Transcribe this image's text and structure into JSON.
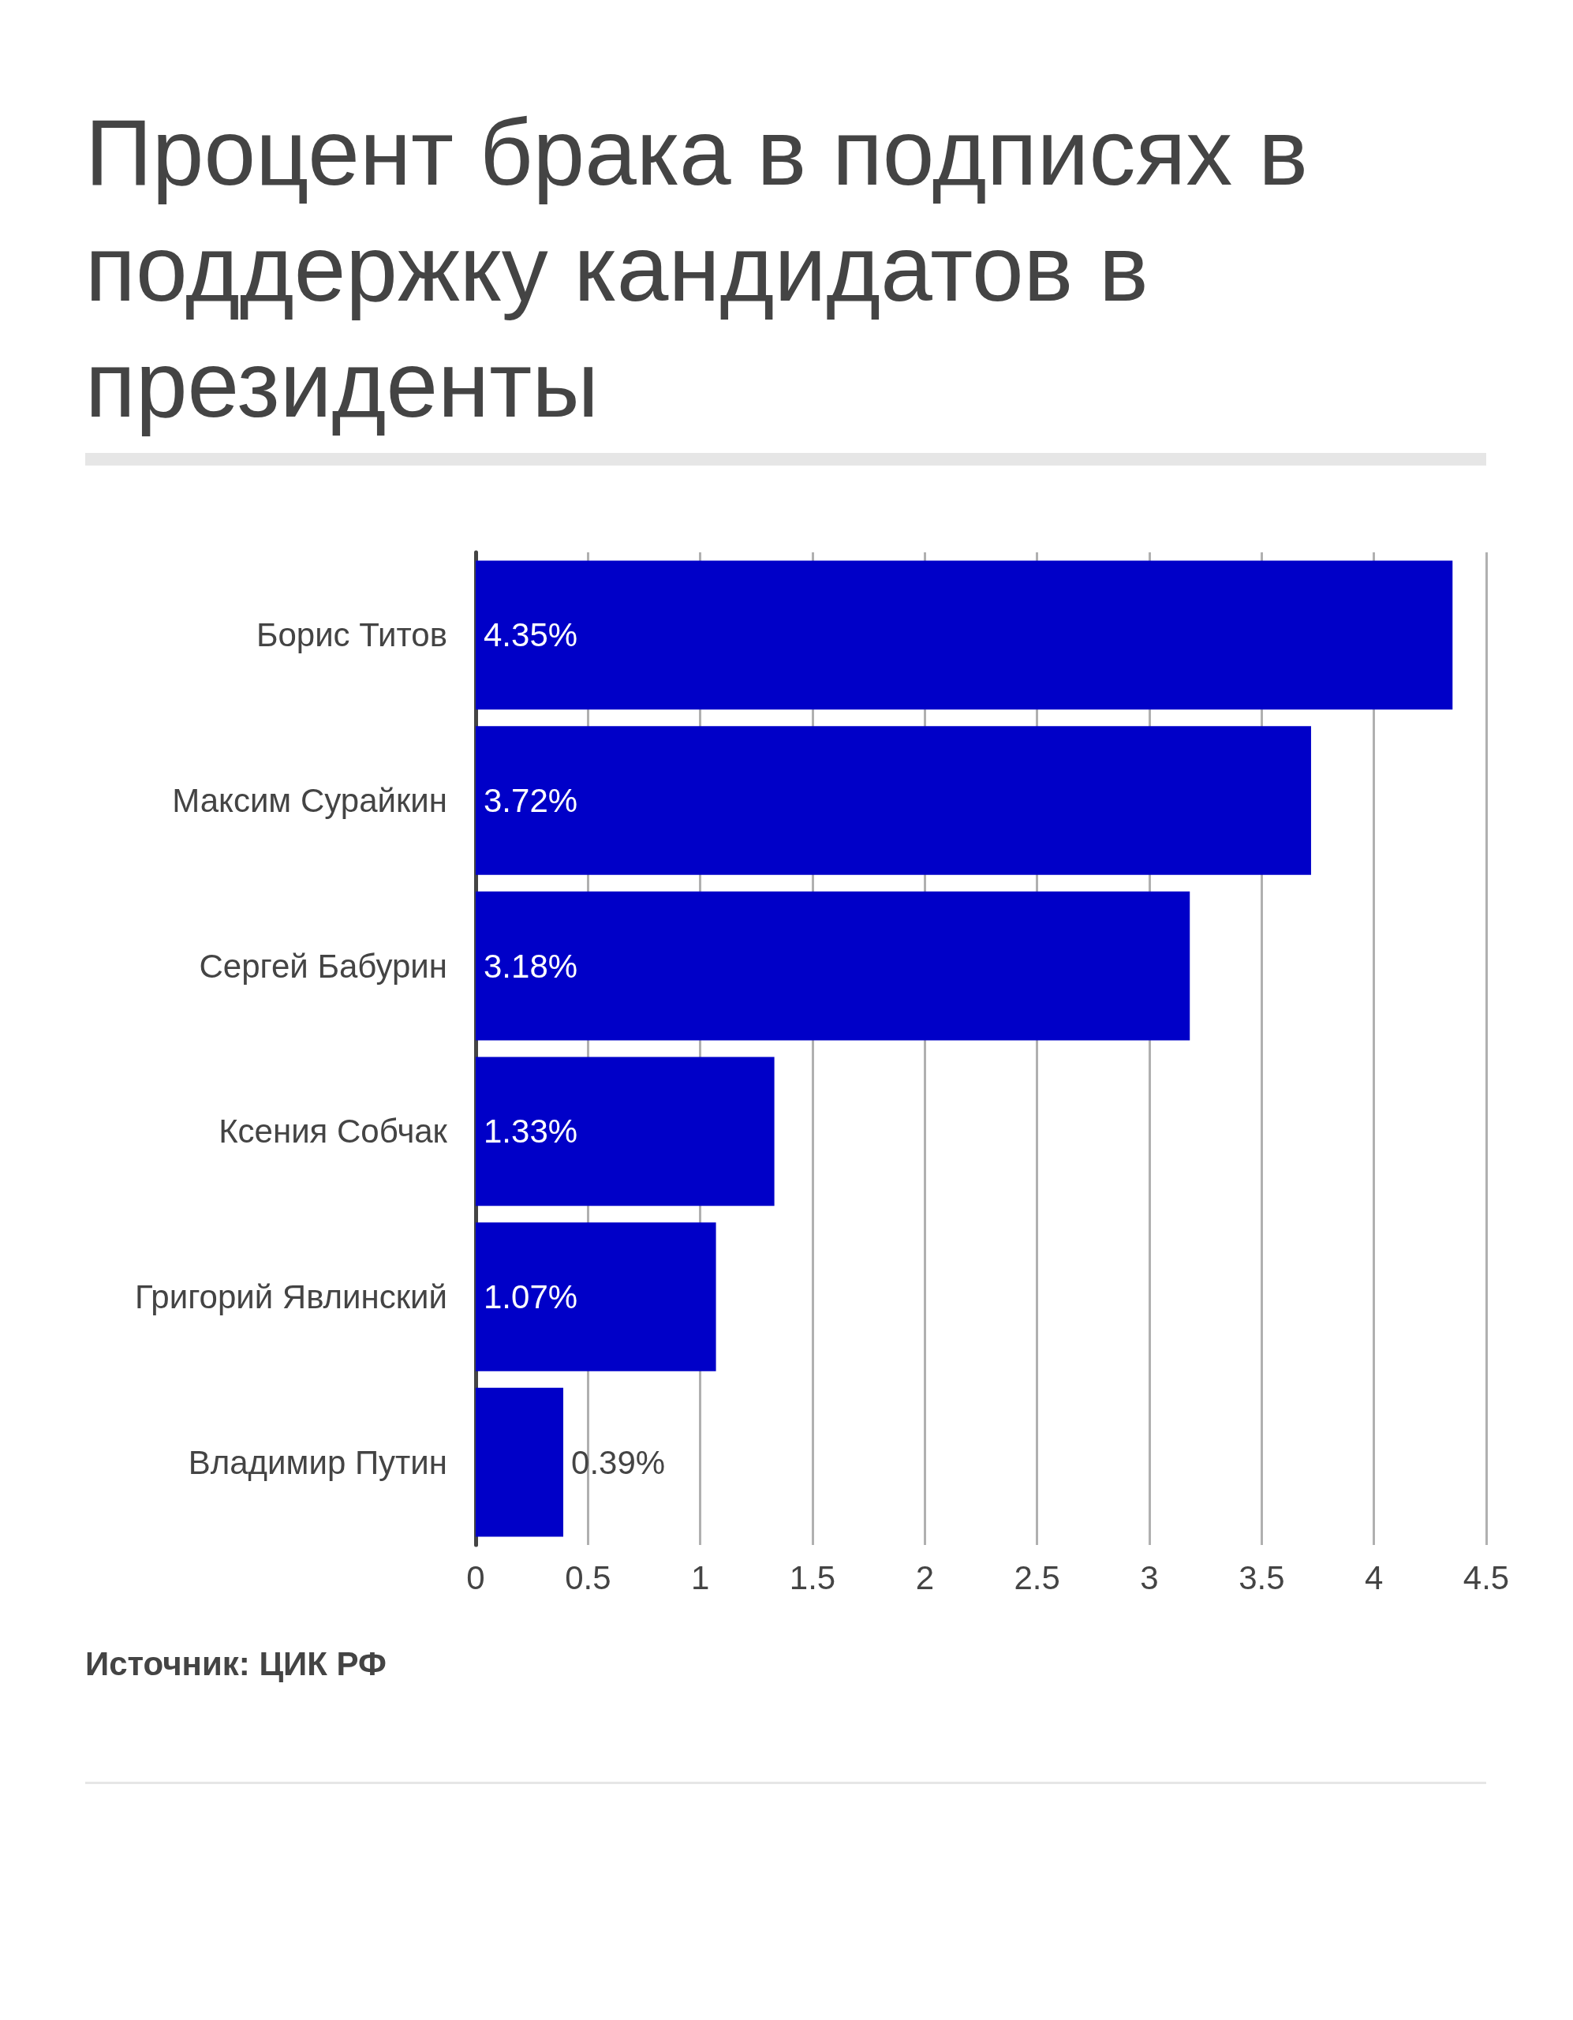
{
  "chart_data": {
    "type": "bar",
    "orientation": "horizontal",
    "title": "Процент брака в подписях в поддержку кандидатов в президенты",
    "categories": [
      "Борис Титов",
      "Максим Сурайкин",
      "Сергей Бабурин",
      "Ксения Собчак",
      "Григорий Явлинский",
      "Владимир Путин"
    ],
    "values": [
      4.35,
      3.72,
      3.18,
      1.33,
      1.07,
      0.39
    ],
    "value_labels": [
      "4.35%",
      "3.72%",
      "3.18%",
      "1.33%",
      "1.07%",
      "0.39%"
    ],
    "color": "#0000c8",
    "xlim": [
      0,
      4.5
    ],
    "xticks": [
      0,
      0.5,
      1,
      1.5,
      2,
      2.5,
      3,
      3.5,
      4,
      4.5
    ],
    "grid": "x",
    "annotations": [
      "Источник: ЦИК РФ"
    ]
  }
}
